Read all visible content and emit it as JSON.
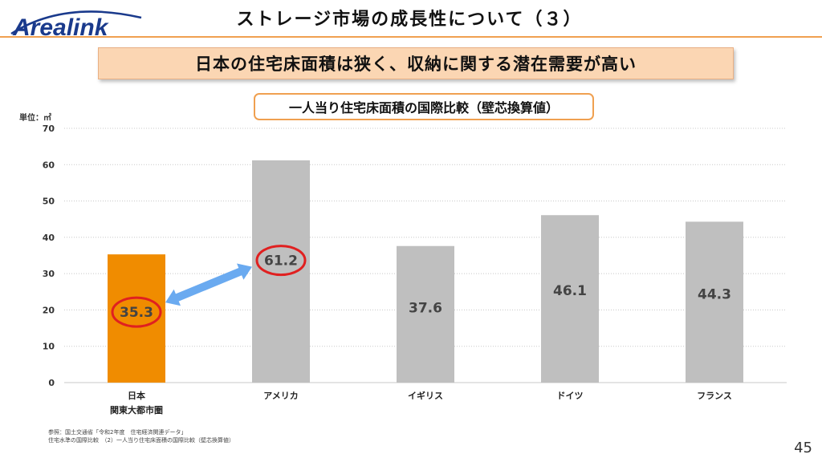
{
  "header": {
    "logo_text": "Arealink",
    "title": "ストレージ市場の成長性について（３）"
  },
  "headline": "日本の住宅床面積は狭く、収納に関する潜在需要が高い",
  "chart_data": {
    "type": "bar",
    "title": "一人当り住宅床面積の国際比較（壁芯換算値）",
    "unit_label": "単位：㎡",
    "categories": [
      {
        "line1": "日本",
        "line2": "関東大都市圏"
      },
      {
        "line1": "アメリカ",
        "line2": ""
      },
      {
        "line1": "イギリス",
        "line2": ""
      },
      {
        "line1": "ドイツ",
        "line2": ""
      },
      {
        "line1": "フランス",
        "line2": ""
      }
    ],
    "values": [
      35.3,
      61.2,
      37.6,
      46.1,
      44.3
    ],
    "value_labels": [
      "35.3",
      "61.2",
      "37.6",
      "46.1",
      "44.3"
    ],
    "ylim": [
      0,
      70
    ],
    "yticks": [
      0,
      10,
      20,
      30,
      40,
      50,
      60,
      70
    ],
    "highlight_index": 0,
    "circled_indices": [
      0,
      1
    ],
    "colors": {
      "highlight": "#f08c00",
      "default": "#bfbfbf",
      "circle": "#e02020",
      "arrow": "#6aaaf0",
      "label": "#444444"
    }
  },
  "footer": {
    "source_line1": "参照：国土交通省「令和2年度　住宅経済関連データ」",
    "source_line2": "住宅水準の国際比較　（2）一人当り住宅床面積の国際比較（壁芯換算値）",
    "page_number": "45"
  },
  "colors": {
    "brand_blue": "#1a3a8c",
    "accent_orange": "#f0a050"
  }
}
